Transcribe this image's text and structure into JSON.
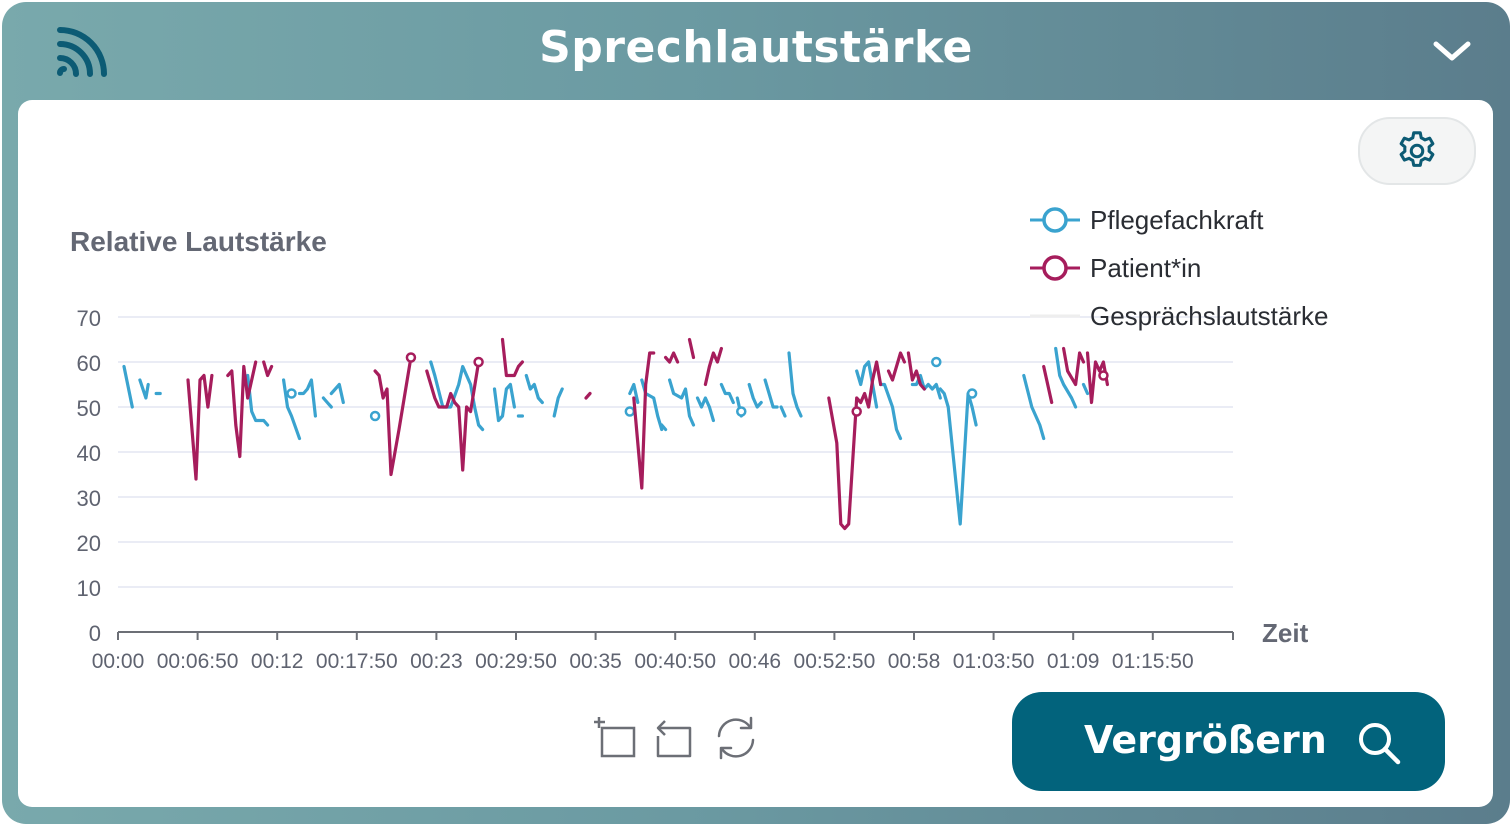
{
  "header": {
    "title": "Sprechlautstärke"
  },
  "toolbar": {
    "zoom_label": "Vergrößern"
  },
  "colors": {
    "pflege": "#3aa3cf",
    "patient": "#a61d5c",
    "accent": "#02637c",
    "grid": "#e3e6f2"
  },
  "icons": [
    "signal-icon",
    "chevron-down-icon",
    "gear-icon",
    "zoom-select-icon",
    "zoom-back-icon",
    "restore-icon",
    "magnifier-icon"
  ],
  "chart_data": {
    "type": "line",
    "ylabel": "Relative Lautstärke",
    "xlabel": "Zeit",
    "ylim": [
      0,
      70
    ],
    "y_ticks": [
      0,
      10,
      20,
      30,
      40,
      50,
      60,
      70
    ],
    "x_tick_labels": [
      "00:00",
      "00:06:50",
      "00:12",
      "00:17:50",
      "00:23",
      "00:29:50",
      "00:35",
      "00:40:50",
      "00:46",
      "00:52:50",
      "00:58",
      "01:03:50",
      "01:09",
      "01:15:50"
    ],
    "legend": [
      "Pflegefachkraft",
      "Patient*in",
      "Gesprächslautstärke"
    ],
    "legend_position": "top-right",
    "grid": true,
    "series": [
      {
        "name": "Pflegefachkraft",
        "segments": [
          [
            [
              0.75,
              59
            ],
            [
              1.8,
              50
            ]
          ],
          [
            [
              2.75,
              56
            ],
            [
              3.5,
              52
            ],
            [
              3.8,
              55
            ]
          ],
          [
            [
              4.8,
              53
            ],
            [
              5.3,
              53
            ]
          ],
          [
            [
              16.3,
              57
            ],
            [
              16.8,
              49
            ],
            [
              17.3,
              47
            ],
            [
              18.3,
              47
            ],
            [
              18.8,
              46
            ]
          ],
          [
            [
              20.8,
              56
            ],
            [
              21.3,
              50
            ],
            [
              21.8,
              48
            ],
            [
              22.8,
              43
            ]
          ],
          [
            [
              22.8,
              53
            ],
            [
              23.3,
              53
            ],
            [
              23.8,
              54
            ],
            [
              24.3,
              56
            ],
            [
              24.8,
              48
            ]
          ],
          [
            [
              25.8,
              52
            ],
            [
              26.3,
              51
            ],
            [
              26.8,
              50
            ]
          ],
          [
            [
              26.8,
              53
            ],
            [
              27.8,
              55
            ],
            [
              28.3,
              51
            ]
          ],
          [
            [
              39.3,
              60
            ],
            [
              39.8,
              57
            ],
            [
              40.8,
              50
            ],
            [
              41.8,
              50
            ],
            [
              42.8,
              55
            ],
            [
              43.3,
              59
            ],
            [
              44.3,
              55
            ],
            [
              44.8,
              50
            ],
            [
              45.3,
              46
            ],
            [
              45.8,
              45
            ]
          ],
          [
            [
              47.3,
              54
            ],
            [
              47.8,
              47
            ],
            [
              48.3,
              48
            ],
            [
              48.8,
              54
            ],
            [
              49.3,
              55
            ],
            [
              49.8,
              50
            ]
          ],
          [
            [
              50.3,
              48
            ],
            [
              50.8,
              48
            ]
          ],
          [
            [
              51.3,
              57
            ],
            [
              51.8,
              54
            ],
            [
              52.3,
              55
            ],
            [
              52.8,
              52
            ],
            [
              53.3,
              51
            ]
          ],
          [
            [
              54.8,
              48
            ],
            [
              55.3,
              52
            ],
            [
              55.8,
              54
            ]
          ],
          [
            [
              64.3,
              53
            ],
            [
              64.8,
              55
            ],
            [
              65.3,
              51
            ]
          ],
          [
            [
              65.8,
              56
            ],
            [
              66.3,
              53
            ],
            [
              67.3,
              52
            ],
            [
              67.8,
              48
            ],
            [
              68.3,
              45
            ]
          ],
          [
            [
              68.3,
              46
            ],
            [
              68.8,
              45
            ]
          ],
          [
            [
              69.3,
              56
            ],
            [
              69.8,
              53
            ],
            [
              70.8,
              52
            ],
            [
              71.3,
              54
            ],
            [
              71.8,
              48
            ],
            [
              72.3,
              46
            ]
          ],
          [
            [
              72.8,
              52
            ],
            [
              73.3,
              50
            ],
            [
              73.8,
              52
            ],
            [
              74.3,
              50
            ],
            [
              74.8,
              47
            ]
          ],
          [
            [
              75.8,
              55
            ],
            [
              76.3,
              53
            ],
            [
              76.8,
              53
            ],
            [
              77.3,
              51
            ]
          ],
          [
            [
              77.8,
              52
            ],
            [
              78.3,
              48
            ]
          ],
          [
            [
              79.3,
              55
            ],
            [
              79.8,
              52
            ],
            [
              80.3,
              50
            ],
            [
              80.8,
              51
            ]
          ],
          [
            [
              81.3,
              56
            ],
            [
              82.3,
              50
            ],
            [
              82.8,
              50
            ]
          ],
          [
            [
              83.3,
              50
            ],
            [
              83.8,
              48
            ]
          ],
          [
            [
              84.3,
              62
            ],
            [
              84.8,
              53
            ],
            [
              85.3,
              50
            ],
            [
              85.8,
              48
            ]
          ],
          [
            [
              92.8,
              58
            ],
            [
              93.3,
              55
            ],
            [
              93.8,
              59
            ],
            [
              94.3,
              60
            ],
            [
              94.8,
              55
            ],
            [
              95.3,
              50
            ]
          ],
          [
            [
              95.8,
              55
            ],
            [
              96.3,
              55
            ],
            [
              97.3,
              50
            ],
            [
              97.8,
              45
            ],
            [
              98.3,
              43
            ]
          ],
          [
            [
              99.8,
              55
            ],
            [
              100.3,
              55
            ],
            [
              100.8,
              57
            ],
            [
              101.3,
              54
            ],
            [
              101.8,
              55
            ],
            [
              102.3,
              54
            ],
            [
              102.8,
              55
            ],
            [
              103.3,
              52
            ]
          ],
          [
            [
              103.3,
              54
            ],
            [
              103.8,
              53
            ],
            [
              104.3,
              50
            ],
            [
              105.8,
              24
            ],
            [
              106.8,
              53
            ],
            [
              107.3,
              50
            ],
            [
              107.8,
              46
            ]
          ],
          [
            [
              113.8,
              57
            ],
            [
              114.8,
              50
            ],
            [
              115.8,
              46
            ],
            [
              116.3,
              43
            ]
          ],
          [
            [
              117.8,
              63
            ],
            [
              118.3,
              57
            ],
            [
              118.8,
              55
            ],
            [
              119.8,
              52
            ],
            [
              120.3,
              50
            ]
          ],
          [
            [
              121.3,
              55
            ],
            [
              121.8,
              53
            ]
          ]
        ],
        "markers": [
          [
            21.8,
            53
          ],
          [
            32.3,
            48
          ],
          [
            64.3,
            49
          ],
          [
            78.3,
            49
          ],
          [
            102.8,
            60
          ],
          [
            107.3,
            53
          ]
        ]
      },
      {
        "name": "Patient*in",
        "segments": [
          [
            [
              8.8,
              56
            ],
            [
              9.3,
              45
            ],
            [
              9.8,
              34
            ],
            [
              10.3,
              56
            ],
            [
              10.8,
              57
            ],
            [
              11.3,
              50
            ],
            [
              11.8,
              57
            ]
          ],
          [
            [
              13.8,
              57
            ],
            [
              14.3,
              58
            ],
            [
              14.8,
              46
            ],
            [
              15.3,
              39
            ],
            [
              15.8,
              59
            ],
            [
              16.3,
              52
            ],
            [
              17.3,
              60
            ]
          ],
          [
            [
              18.3,
              60
            ],
            [
              18.8,
              57
            ],
            [
              19.3,
              59
            ]
          ],
          [
            [
              32.3,
              58
            ],
            [
              32.8,
              57
            ],
            [
              33.3,
              52
            ],
            [
              33.8,
              54
            ],
            [
              34.3,
              35
            ],
            [
              35.3,
              45
            ],
            [
              36.8,
              61
            ]
          ],
          [
            [
              38.8,
              58
            ],
            [
              39.8,
              52
            ],
            [
              40.3,
              50
            ],
            [
              41.3,
              50
            ],
            [
              41.8,
              53
            ],
            [
              42.3,
              51
            ],
            [
              42.8,
              50
            ],
            [
              43.3,
              36
            ],
            [
              43.8,
              50
            ],
            [
              44.3,
              49
            ],
            [
              45.3,
              60
            ]
          ],
          [
            [
              48.3,
              65
            ],
            [
              48.8,
              57
            ],
            [
              49.8,
              57
            ],
            [
              50.3,
              59
            ],
            [
              50.8,
              60
            ]
          ],
          [
            [
              58.8,
              52
            ],
            [
              59.3,
              53
            ]
          ],
          [
            [
              64.8,
              52
            ],
            [
              65.8,
              32
            ],
            [
              66.3,
              55
            ],
            [
              66.8,
              62
            ],
            [
              67.3,
              62
            ]
          ],
          [
            [
              68.8,
              61
            ],
            [
              69.3,
              60
            ],
            [
              69.8,
              62
            ],
            [
              70.3,
              60
            ]
          ],
          [
            [
              71.8,
              65
            ],
            [
              72.3,
              61
            ]
          ],
          [
            [
              73.8,
              55
            ],
            [
              74.3,
              59
            ],
            [
              74.8,
              62
            ],
            [
              75.3,
              60
            ],
            [
              75.8,
              63
            ]
          ],
          [
            [
              89.3,
              52
            ],
            [
              90.3,
              42
            ],
            [
              90.8,
              24
            ],
            [
              91.3,
              23
            ],
            [
              91.8,
              24
            ],
            [
              92.8,
              52
            ],
            [
              93.3,
              51
            ],
            [
              93.8,
              53
            ],
            [
              94.3,
              50
            ],
            [
              94.8,
              56
            ],
            [
              95.3,
              60
            ],
            [
              95.8,
              55
            ]
          ],
          [
            [
              96.8,
              58
            ],
            [
              97.3,
              56
            ],
            [
              98.3,
              62
            ],
            [
              98.8,
              60
            ]
          ],
          [
            [
              99.3,
              62
            ],
            [
              99.8,
              56
            ],
            [
              100.3,
              58
            ],
            [
              100.8,
              55
            ],
            [
              101.3,
              54
            ]
          ],
          [
            [
              116.3,
              59
            ],
            [
              117.3,
              51
            ]
          ],
          [
            [
              118.8,
              63
            ],
            [
              119.3,
              58
            ],
            [
              120.3,
              55
            ],
            [
              120.8,
              62
            ],
            [
              121.3,
              60
            ]
          ],
          [
            [
              121.8,
              62
            ],
            [
              122.3,
              51
            ],
            [
              122.8,
              60
            ],
            [
              123.3,
              58
            ],
            [
              123.8,
              60
            ],
            [
              124.3,
              55
            ]
          ]
        ],
        "markers": [
          [
            36.8,
            61
          ],
          [
            45.3,
            60
          ],
          [
            92.8,
            49
          ],
          [
            123.8,
            57
          ]
        ]
      }
    ]
  }
}
